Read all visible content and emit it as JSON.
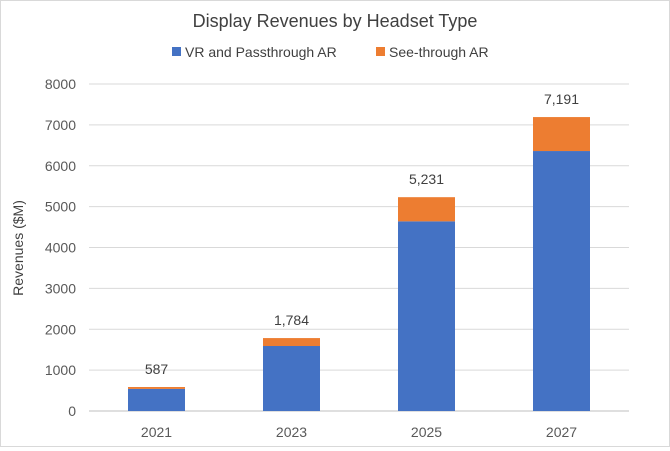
{
  "chart_data": {
    "type": "bar",
    "stacked": true,
    "title": "Display Revenues by Headset Type",
    "xlabel": "",
    "ylabel": "Revenues ($M)",
    "categories": [
      "2021",
      "2023",
      "2025",
      "2027"
    ],
    "series": [
      {
        "name": "VR and Passthrough AR",
        "color": "#4472c4",
        "values": [
          540,
          1590,
          4640,
          6360
        ]
      },
      {
        "name": "See-through AR",
        "color": "#ed7d31",
        "values": [
          47,
          194,
          591,
          831
        ]
      }
    ],
    "totals": [
      587,
      1784,
      5231,
      7191
    ],
    "total_labels": [
      "587",
      "1,784",
      "5,231",
      "7,191"
    ],
    "ylim": [
      0,
      8000
    ],
    "yticks": [
      0,
      1000,
      2000,
      3000,
      4000,
      5000,
      6000,
      7000,
      8000
    ],
    "ytick_labels": [
      "0",
      "1000",
      "2000",
      "3000",
      "4000",
      "5000",
      "6000",
      "7000",
      "8000"
    ],
    "grid": true,
    "legend_position": "top"
  }
}
